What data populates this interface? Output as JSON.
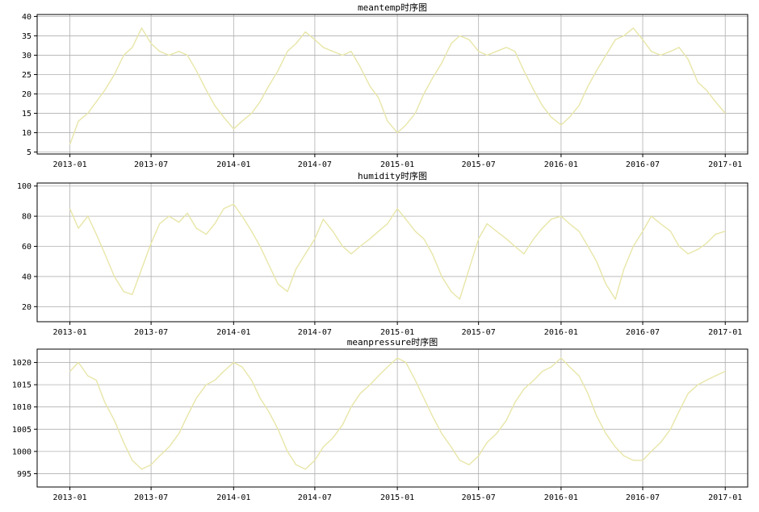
{
  "chart_data": [
    {
      "type": "line",
      "title": "meantemp时序图",
      "xlabel": "",
      "ylabel": "",
      "x_range": [
        "2012-10-20",
        "2017-02-20"
      ],
      "xticks": [
        "2013-01",
        "2013-07",
        "2014-01",
        "2014-07",
        "2015-01",
        "2015-07",
        "2016-01",
        "2016-07",
        "2017-01"
      ],
      "ylim": [
        4.5,
        40.5
      ],
      "yticks": [
        5,
        10,
        15,
        20,
        25,
        30,
        35,
        40
      ],
      "grid": true,
      "color": "#e8e6a8",
      "series": [
        {
          "x": [
            "2013-01-01",
            "2013-01-20",
            "2013-02-10",
            "2013-03-01",
            "2013-03-20",
            "2013-04-10",
            "2013-05-01",
            "2013-05-20",
            "2013-06-10",
            "2013-07-01",
            "2013-07-20",
            "2013-08-10",
            "2013-09-01",
            "2013-09-20",
            "2013-10-10",
            "2013-11-01",
            "2013-11-20",
            "2013-12-10",
            "2014-01-01",
            "2014-01-20",
            "2014-02-10",
            "2014-03-01",
            "2014-03-20",
            "2014-04-10",
            "2014-05-01",
            "2014-05-20",
            "2014-06-10",
            "2014-07-01",
            "2014-07-20",
            "2014-08-10",
            "2014-09-01",
            "2014-09-20",
            "2014-10-10",
            "2014-11-01",
            "2014-11-20",
            "2014-12-10",
            "2015-01-01",
            "2015-01-20",
            "2015-02-10",
            "2015-03-01",
            "2015-03-20",
            "2015-04-10",
            "2015-05-01",
            "2015-05-20",
            "2015-06-10",
            "2015-07-01",
            "2015-07-20",
            "2015-08-10",
            "2015-09-01",
            "2015-09-20",
            "2015-10-10",
            "2015-11-01",
            "2015-11-20",
            "2015-12-10",
            "2016-01-01",
            "2016-01-20",
            "2016-02-10",
            "2016-03-01",
            "2016-03-20",
            "2016-04-10",
            "2016-05-01",
            "2016-05-20",
            "2016-06-10",
            "2016-07-01",
            "2016-07-20",
            "2016-08-10",
            "2016-09-01",
            "2016-09-20",
            "2016-10-10",
            "2016-11-01",
            "2016-11-20",
            "2016-12-10",
            "2017-01-01"
          ],
          "y": [
            7,
            13,
            15,
            18,
            21,
            25,
            30,
            32,
            37,
            33,
            31,
            30,
            31,
            30,
            26,
            21,
            17,
            14,
            11,
            13,
            15,
            18,
            22,
            26,
            31,
            33,
            36,
            34,
            32,
            31,
            30,
            31,
            27,
            22,
            19,
            13,
            10,
            12,
            15,
            20,
            24,
            28,
            33,
            35,
            34,
            31,
            30,
            31,
            32,
            31,
            26,
            21,
            17,
            14,
            12,
            14,
            17,
            22,
            26,
            30,
            34,
            35,
            37,
            34,
            31,
            30,
            31,
            32,
            29,
            23,
            21,
            18,
            15
          ]
        }
      ]
    },
    {
      "type": "line",
      "title": "humidity时序图",
      "xlabel": "",
      "ylabel": "",
      "x_range": [
        "2012-10-20",
        "2017-02-20"
      ],
      "xticks": [
        "2013-01",
        "2013-07",
        "2014-01",
        "2014-07",
        "2015-01",
        "2015-07",
        "2016-01",
        "2016-07",
        "2017-01"
      ],
      "ylim": [
        10,
        102
      ],
      "yticks": [
        20,
        40,
        60,
        80,
        100
      ],
      "grid": true,
      "color": "#e8e6a8",
      "series": [
        {
          "x": [
            "2013-01-01",
            "2013-01-20",
            "2013-02-10",
            "2013-03-01",
            "2013-03-20",
            "2013-04-10",
            "2013-05-01",
            "2013-05-20",
            "2013-06-10",
            "2013-07-01",
            "2013-07-20",
            "2013-08-10",
            "2013-09-01",
            "2013-09-20",
            "2013-10-10",
            "2013-11-01",
            "2013-11-20",
            "2013-12-10",
            "2014-01-01",
            "2014-01-20",
            "2014-02-10",
            "2014-03-01",
            "2014-03-20",
            "2014-04-10",
            "2014-05-01",
            "2014-05-20",
            "2014-06-10",
            "2014-07-01",
            "2014-07-20",
            "2014-08-10",
            "2014-09-01",
            "2014-09-20",
            "2014-10-10",
            "2014-11-01",
            "2014-11-20",
            "2014-12-10",
            "2015-01-01",
            "2015-01-20",
            "2015-02-10",
            "2015-03-01",
            "2015-03-20",
            "2015-04-10",
            "2015-05-01",
            "2015-05-20",
            "2015-06-10",
            "2015-07-01",
            "2015-07-20",
            "2015-08-10",
            "2015-09-01",
            "2015-09-20",
            "2015-10-10",
            "2015-11-01",
            "2015-11-20",
            "2015-12-10",
            "2016-01-01",
            "2016-01-20",
            "2016-02-10",
            "2016-03-01",
            "2016-03-20",
            "2016-04-10",
            "2016-05-01",
            "2016-05-20",
            "2016-06-10",
            "2016-07-01",
            "2016-07-20",
            "2016-08-10",
            "2016-09-01",
            "2016-09-20",
            "2016-10-10",
            "2016-11-01",
            "2016-11-20",
            "2016-12-10",
            "2017-01-01"
          ],
          "y": [
            85,
            72,
            80,
            68,
            55,
            40,
            30,
            28,
            45,
            62,
            75,
            80,
            76,
            82,
            72,
            68,
            75,
            85,
            88,
            80,
            70,
            60,
            48,
            35,
            30,
            45,
            55,
            65,
            78,
            70,
            60,
            55,
            60,
            65,
            70,
            75,
            85,
            78,
            70,
            65,
            55,
            40,
            30,
            25,
            45,
            65,
            75,
            70,
            65,
            60,
            55,
            65,
            72,
            78,
            80,
            75,
            70,
            60,
            50,
            35,
            25,
            45,
            60,
            70,
            80,
            75,
            70,
            60,
            55,
            58,
            62,
            68,
            70
          ]
        }
      ]
    },
    {
      "type": "line",
      "title": "meanpressure时序图",
      "xlabel": "",
      "ylabel": "",
      "x_range": [
        "2012-10-20",
        "2017-02-20"
      ],
      "xticks": [
        "2013-01",
        "2013-07",
        "2014-01",
        "2014-07",
        "2015-01",
        "2015-07",
        "2016-01",
        "2016-07",
        "2017-01"
      ],
      "ylim": [
        992,
        1023
      ],
      "yticks": [
        995,
        1000,
        1005,
        1010,
        1015,
        1020
      ],
      "grid": true,
      "color": "#e8e6a8",
      "series": [
        {
          "x": [
            "2013-01-01",
            "2013-01-20",
            "2013-02-10",
            "2013-03-01",
            "2013-03-20",
            "2013-04-10",
            "2013-05-01",
            "2013-05-20",
            "2013-06-10",
            "2013-07-01",
            "2013-07-20",
            "2013-08-10",
            "2013-09-01",
            "2013-09-20",
            "2013-10-10",
            "2013-11-01",
            "2013-11-20",
            "2013-12-10",
            "2014-01-01",
            "2014-01-20",
            "2014-02-10",
            "2014-03-01",
            "2014-03-20",
            "2014-04-10",
            "2014-05-01",
            "2014-05-20",
            "2014-06-10",
            "2014-07-01",
            "2014-07-20",
            "2014-08-10",
            "2014-09-01",
            "2014-09-20",
            "2014-10-10",
            "2014-11-01",
            "2014-11-20",
            "2014-12-10",
            "2015-01-01",
            "2015-01-20",
            "2015-02-10",
            "2015-03-01",
            "2015-03-20",
            "2015-04-10",
            "2015-05-01",
            "2015-05-20",
            "2015-06-10",
            "2015-07-01",
            "2015-07-20",
            "2015-08-10",
            "2015-09-01",
            "2015-09-20",
            "2015-10-10",
            "2015-11-01",
            "2015-11-20",
            "2015-12-10",
            "2016-01-01",
            "2016-01-20",
            "2016-02-10",
            "2016-03-01",
            "2016-03-20",
            "2016-04-10",
            "2016-05-01",
            "2016-05-20",
            "2016-06-10",
            "2016-07-01",
            "2016-07-20",
            "2016-08-10",
            "2016-09-01",
            "2016-09-20",
            "2016-10-10",
            "2016-11-01",
            "2016-11-20",
            "2016-12-10",
            "2017-01-01"
          ],
          "y": [
            1018,
            1020,
            1017,
            1016,
            1011,
            1007,
            1002,
            998,
            996,
            997,
            999,
            1001,
            1004,
            1008,
            1012,
            1015,
            1016,
            1018,
            1020,
            1019,
            1016,
            1012,
            1009,
            1005,
            1000,
            997,
            996,
            998,
            1001,
            1003,
            1006,
            1010,
            1013,
            1015,
            1017,
            1019,
            1021,
            1020,
            1016,
            1012,
            1008,
            1004,
            1001,
            998,
            997,
            999,
            1002,
            1004,
            1007,
            1011,
            1014,
            1016,
            1018,
            1019,
            1021,
            1019,
            1017,
            1013,
            1008,
            1004,
            1001,
            999,
            998,
            998,
            1000,
            1002,
            1005,
            1009,
            1013,
            1015,
            1016,
            1017,
            1018
          ]
        }
      ]
    }
  ]
}
